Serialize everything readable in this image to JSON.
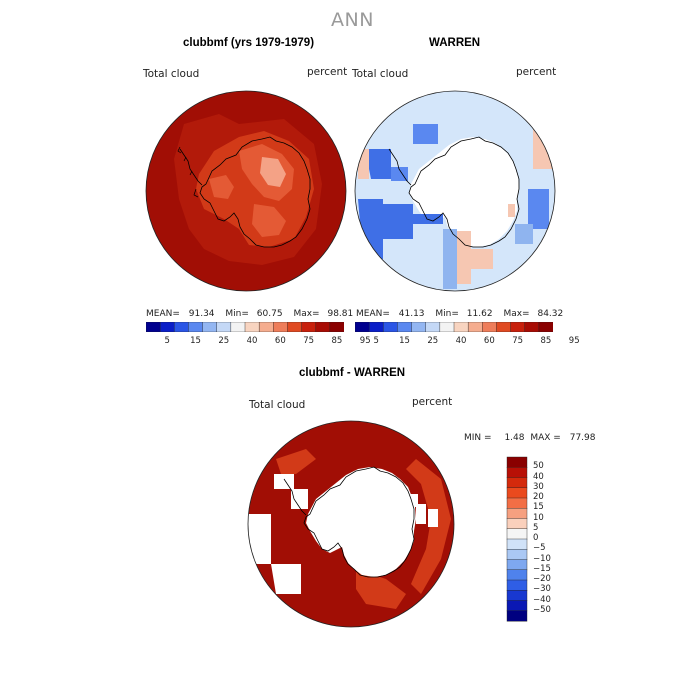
{
  "title": "ANN",
  "panels": {
    "left": {
      "title": "clubbmf (yrs 1979-1979)",
      "field_label": "Total cloud",
      "unit": "percent",
      "stats": {
        "mean_label": "MEAN=",
        "mean": "91.34",
        "min_label": "Min=",
        "min": "60.75",
        "max_label": "Max=",
        "max": "98.81"
      }
    },
    "right": {
      "title": "WARREN",
      "field_label": "Total cloud",
      "unit": "percent",
      "stats": {
        "mean_label": "MEAN=",
        "mean": "41.13",
        "min_label": "Min=",
        "min": "11.62",
        "max_label": "Max=",
        "max": "84.32"
      }
    },
    "diff": {
      "title": "clubbmf - WARREN",
      "field_label": "Total cloud",
      "unit": "percent",
      "stats": {
        "min_label": "MIN =",
        "min": "1.48",
        "max_label": "MAX =",
        "max": "77.98"
      }
    }
  },
  "colorbar_abs": {
    "labels": [
      "5",
      "15",
      "25",
      "40",
      "60",
      "75",
      "85",
      "95"
    ],
    "colors": [
      "#00008f",
      "#0a1ec8",
      "#2a55e6",
      "#5a88f0",
      "#93b6f2",
      "#c4d8f6",
      "#f3f3f3",
      "#f8d4c0",
      "#f5ad8f",
      "#ee7d5a",
      "#e04a22",
      "#c8200c",
      "#a80c04",
      "#8a0000"
    ]
  },
  "colorbar_diff": {
    "labels": [
      "50",
      "40",
      "30",
      "20",
      "15",
      "10",
      "5",
      "0",
      "−5",
      "−10",
      "−15",
      "−20",
      "−30",
      "−40",
      "−50"
    ],
    "colors": [
      "#8a0000",
      "#b81006",
      "#d42a0c",
      "#ea4a1e",
      "#f26e45",
      "#f6a080",
      "#fad0bc",
      "#f5f5f5",
      "#d0e2f8",
      "#aac8f4",
      "#7ea8f0",
      "#4f82ec",
      "#2f5ee6",
      "#1838d0",
      "#0a18b4",
      "#000080"
    ]
  },
  "map_colors": {
    "sea_red": "#a10e05",
    "ice_lt": "#e45a35",
    "ice_med": "#d23a18",
    "ice_pale": "#f4a286",
    "pale_blue": "#d4e6fa",
    "mid_blue": "#8fb4ef",
    "blue": "#3f6fe6",
    "pink": "#f6c7b2",
    "coast": "#000000"
  }
}
